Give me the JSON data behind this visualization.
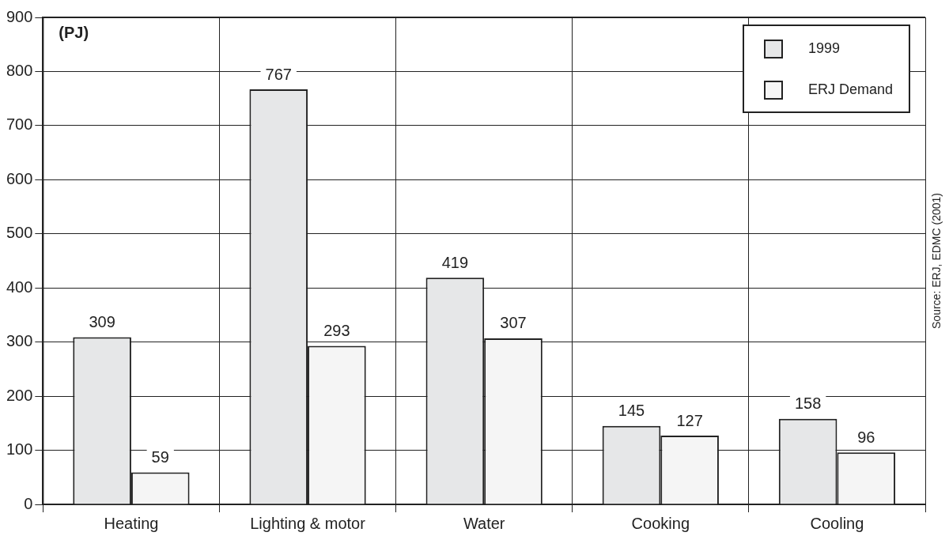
{
  "chart_data": {
    "type": "bar",
    "ylabel": "(PJ)",
    "categories": [
      "Heating",
      "Lighting & motor",
      "Water",
      "Cooking",
      "Cooling"
    ],
    "series": [
      {
        "name": "1999",
        "color": "#e6e7e8",
        "values": [
          309,
          767,
          419,
          145,
          158
        ]
      },
      {
        "name": "ERJ Demand",
        "color": "#f5f5f5",
        "values": [
          59,
          293,
          307,
          127,
          96
        ]
      }
    ],
    "ylim": [
      0,
      900
    ],
    "yticks": [
      0,
      100,
      200,
      300,
      400,
      500,
      600,
      700,
      800,
      900
    ],
    "grid": true,
    "legend": "top right",
    "data_labels": true,
    "annotations": [
      "Source: ERJ, EDMC (2001)"
    ]
  }
}
